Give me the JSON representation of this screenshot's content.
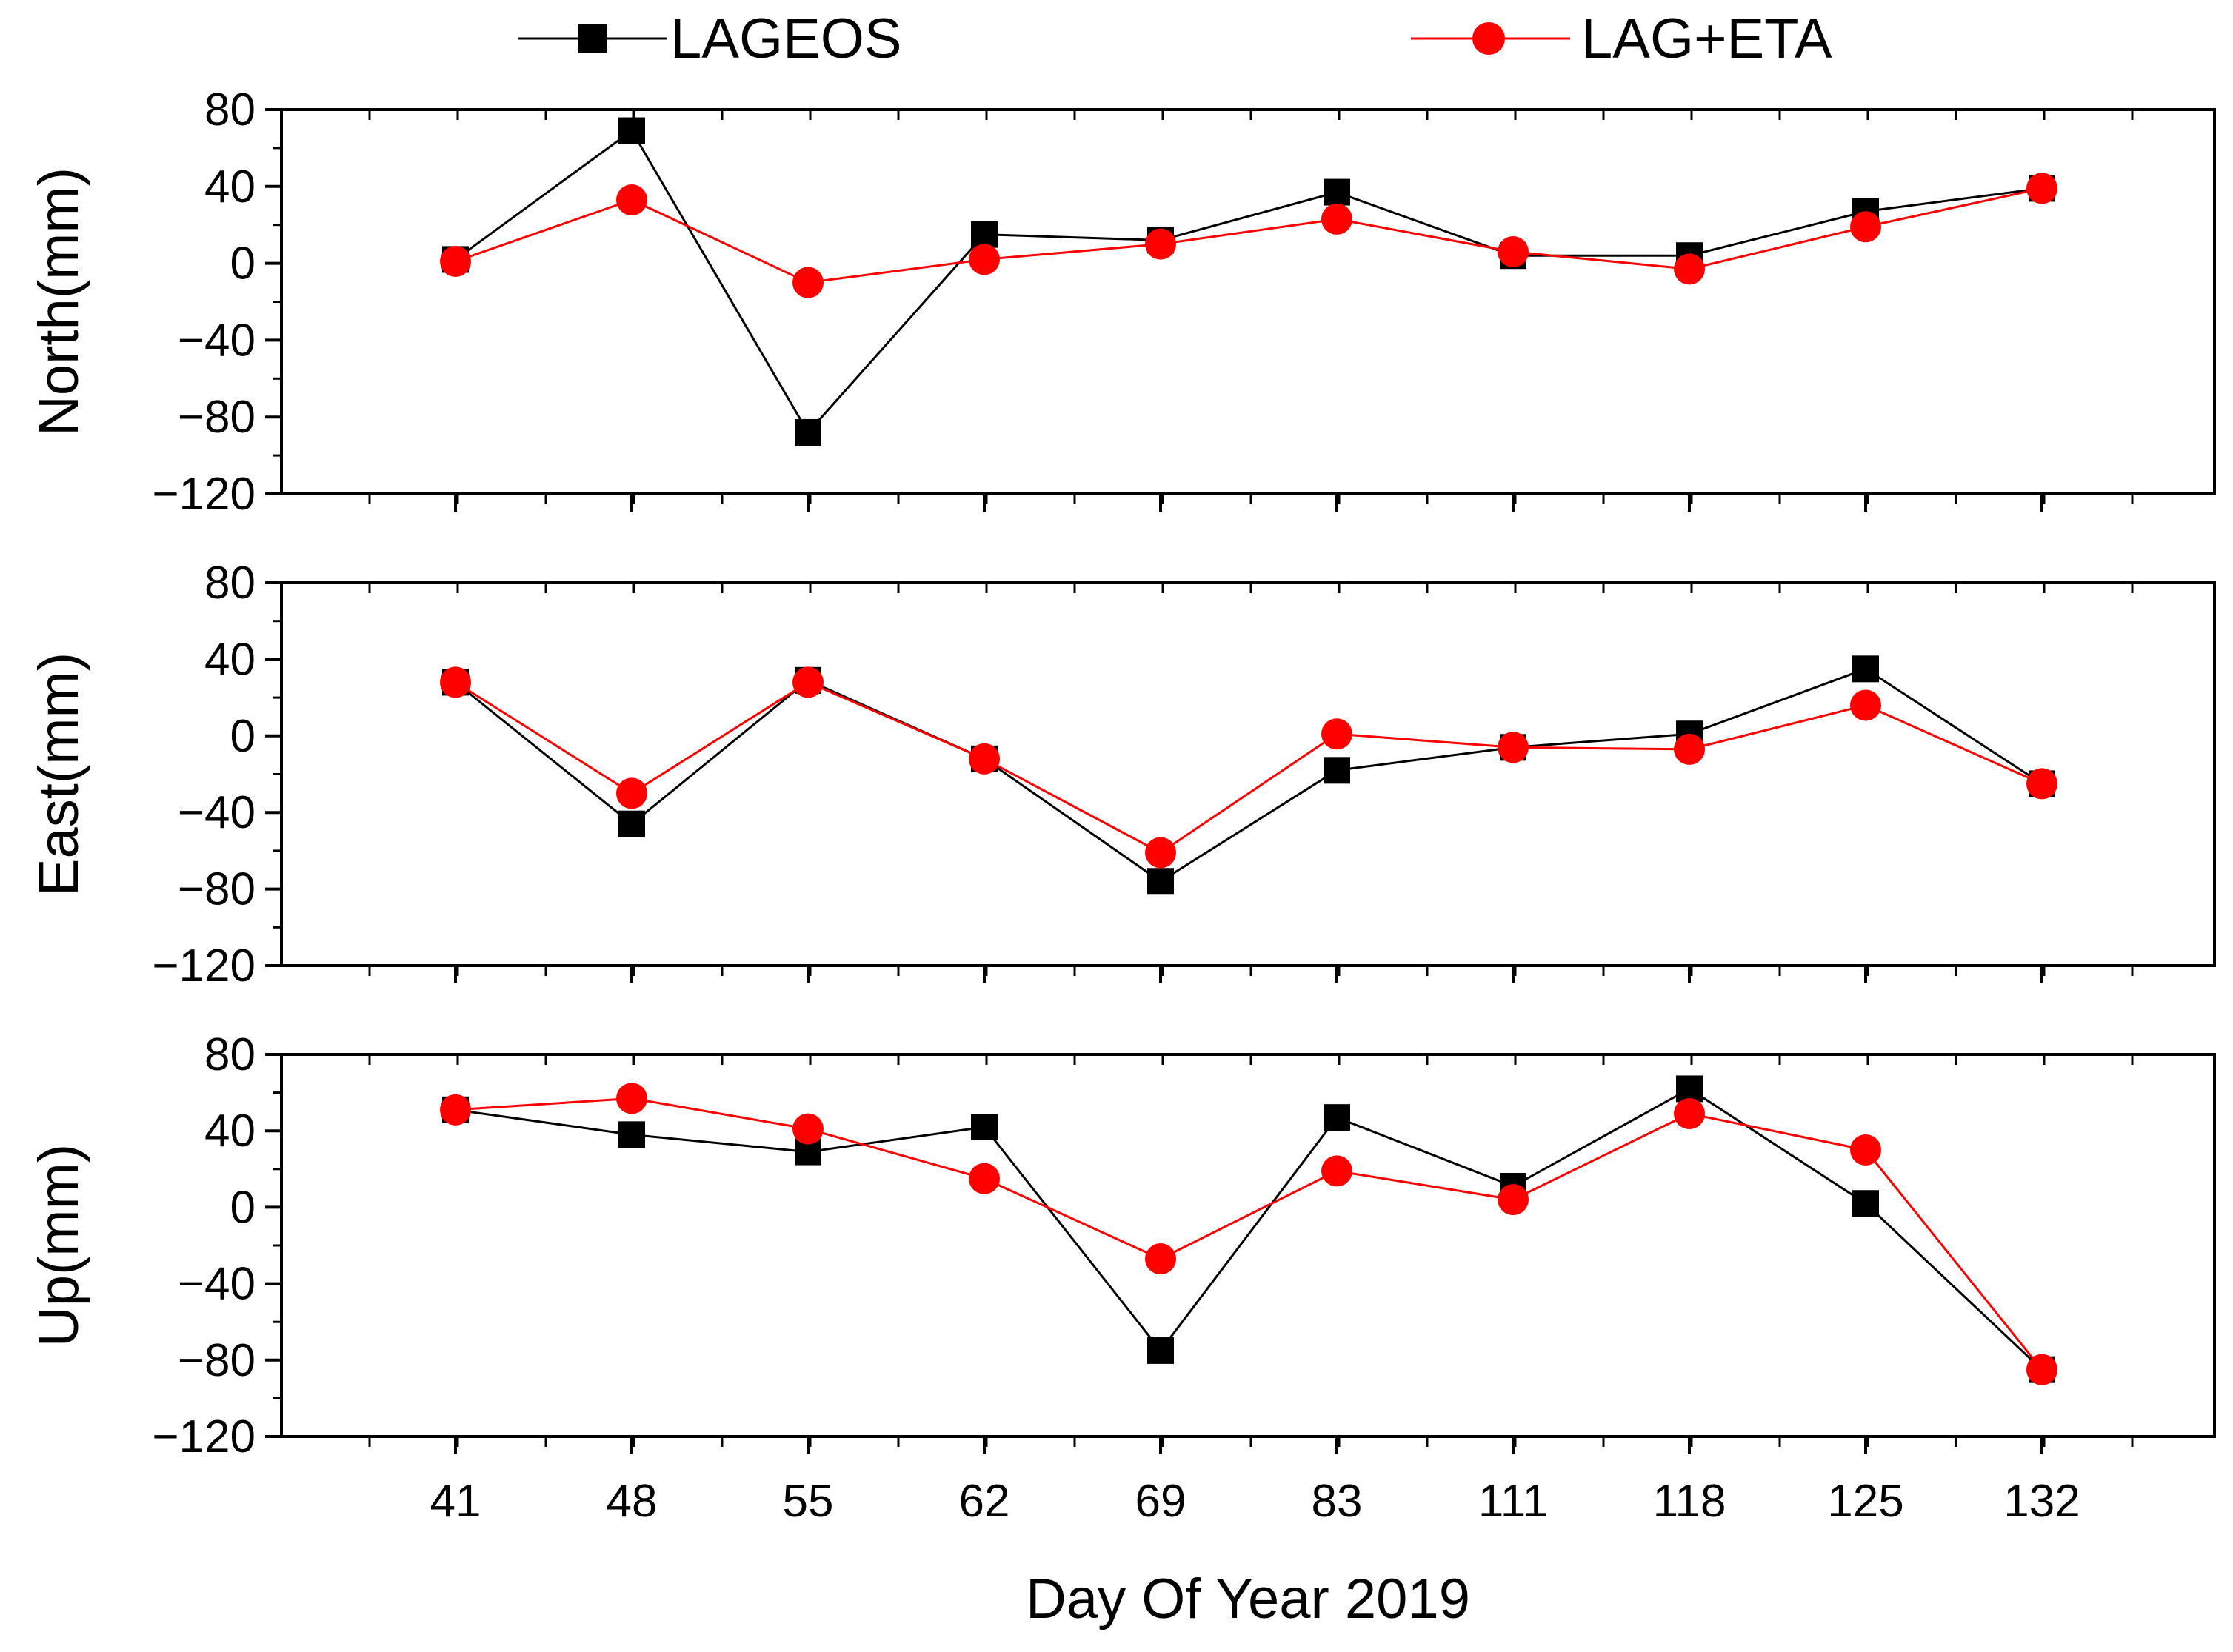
{
  "chart_data": {
    "type": "line",
    "legend": {
      "placement": "top",
      "entries": [
        {
          "label": "LAGEOS",
          "color": "#000000",
          "marker": "square"
        },
        {
          "label": "LAG+ETA",
          "color": "#ff0000",
          "marker": "circle"
        }
      ]
    },
    "categories": [
      "41",
      "48",
      "55",
      "62",
      "69",
      "83",
      "111",
      "118",
      "125",
      "132"
    ],
    "xlabel": "Day Of Year 2019",
    "panels": [
      {
        "ylabel": "North(mm)",
        "ylim": [
          -120,
          80
        ],
        "yticks": [
          "80",
          "40",
          "0",
          "−40",
          "−80",
          "−120"
        ],
        "series": [
          {
            "name": "LAGEOS",
            "values": [
              2,
              69,
              -88,
              15,
              12,
              37,
              4,
              4,
              27,
              39
            ]
          },
          {
            "name": "LAG+ETA",
            "values": [
              1,
              33,
              -10,
              2,
              10,
              23,
              6,
              -3,
              19,
              39
            ]
          }
        ]
      },
      {
        "ylabel": "East(mm)",
        "ylim": [
          -120,
          80
        ],
        "yticks": [
          "80",
          "40",
          "0",
          "−40",
          "−80",
          "−120"
        ],
        "series": [
          {
            "name": "LAGEOS",
            "values": [
              28,
              -46,
              29,
              -12,
              -76,
              -18,
              -6,
              1,
              35,
              -25
            ]
          },
          {
            "name": "LAG+ETA",
            "values": [
              28,
              -30,
              28,
              -12,
              -61,
              1,
              -6,
              -7,
              16,
              -25
            ]
          }
        ]
      },
      {
        "ylabel": "Up(mm)",
        "ylim": [
          -120,
          80
        ],
        "yticks": [
          "80",
          "40",
          "0",
          "−40",
          "−80",
          "−120"
        ],
        "series": [
          {
            "name": "LAGEOS",
            "values": [
              51,
              38,
              29,
              42,
              -75,
              47,
              11,
              62,
              2,
              -85
            ]
          },
          {
            "name": "LAG+ETA",
            "values": [
              51,
              57,
              41,
              15,
              -27,
              19,
              4,
              49,
              30,
              -85
            ]
          }
        ]
      }
    ]
  }
}
